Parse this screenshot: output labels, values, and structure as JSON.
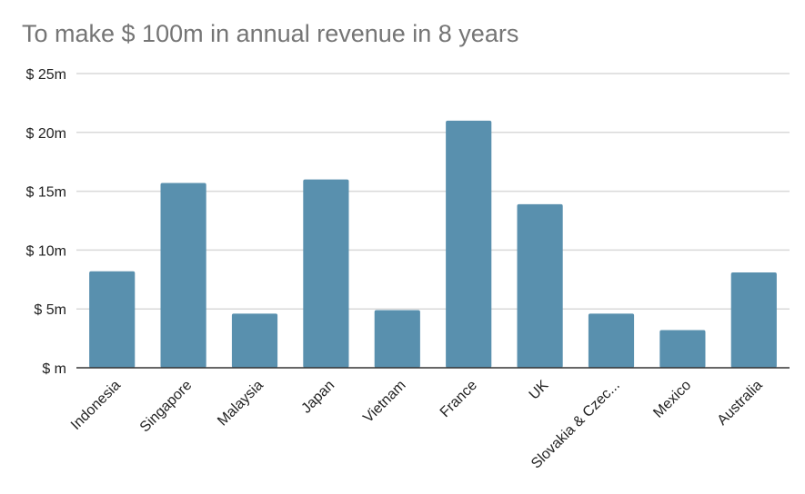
{
  "chart_data": {
    "type": "bar",
    "title": "To make $ 100m in annual revenue in 8 years",
    "categories": [
      "Indonesia",
      "Singapore",
      "Malaysia",
      "Japan",
      "Vietnam",
      "France",
      "UK",
      "Slovakia & Czec...",
      "Mexico",
      "Australia"
    ],
    "values": [
      8.2,
      15.7,
      4.6,
      16.0,
      4.9,
      21.0,
      13.9,
      4.6,
      3.2,
      8.1
    ],
    "y_ticks": [
      0,
      5,
      10,
      15,
      20,
      25
    ],
    "y_tick_labels": [
      "$ m",
      "$ 5m",
      "$ 10m",
      "$ 15m",
      "$ 20m",
      "$ 25m"
    ],
    "ylim": [
      0,
      25
    ],
    "xlabel": "",
    "ylabel": "",
    "grid": true,
    "bar_color": "#5990ae",
    "grid_color": "#d9d9d9",
    "axis_color": "#333333"
  }
}
